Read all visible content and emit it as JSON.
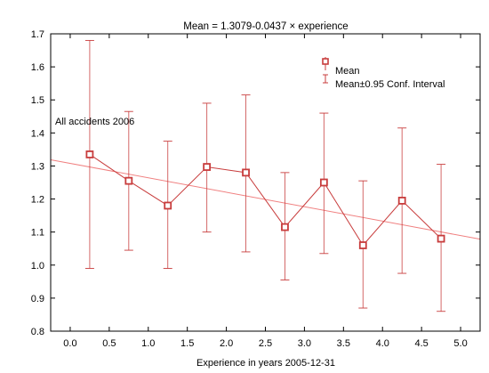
{
  "chart_data": {
    "type": "line",
    "title": "Mean = 1.3079-0.0437 × experience",
    "xlabel": "Experience in years 2005-12-31",
    "ylabel": "",
    "annotation": "All accidents 2006",
    "xlim": [
      -0.25,
      5.25
    ],
    "ylim": [
      0.8,
      1.7
    ],
    "x_ticks": [
      "0.0",
      "0.5",
      "1.0",
      "1.5",
      "2.0",
      "2.5",
      "3.0",
      "3.5",
      "4.0",
      "4.5",
      "5.0"
    ],
    "y_ticks": [
      "0.8",
      "0.9",
      "1.0",
      "1.1",
      "1.2",
      "1.3",
      "1.4",
      "1.5",
      "1.6",
      "1.7"
    ],
    "grid": false,
    "legend": {
      "placement": "top-right",
      "entries": [
        "Mean",
        "Mean±0.95 Conf. Interval"
      ]
    },
    "colors": {
      "series": "#c83c3c",
      "marker_fill": "#ffffff",
      "fit_line": "#f08080"
    },
    "series": [
      {
        "name": "Mean",
        "x": [
          0.25,
          0.75,
          1.25,
          1.75,
          2.25,
          2.75,
          3.25,
          3.75,
          4.25,
          4.75
        ],
        "values": [
          1.335,
          1.255,
          1.18,
          1.297,
          1.28,
          1.115,
          1.25,
          1.06,
          1.195,
          1.08
        ],
        "ci_low": [
          0.99,
          1.045,
          0.99,
          1.1,
          1.04,
          0.955,
          1.035,
          0.87,
          0.975,
          0.86
        ],
        "ci_high": [
          1.68,
          1.465,
          1.375,
          1.49,
          1.515,
          1.28,
          1.46,
          1.255,
          1.415,
          1.305
        ]
      }
    ],
    "fit_line": {
      "intercept": 1.3079,
      "slope": -0.0437
    }
  }
}
